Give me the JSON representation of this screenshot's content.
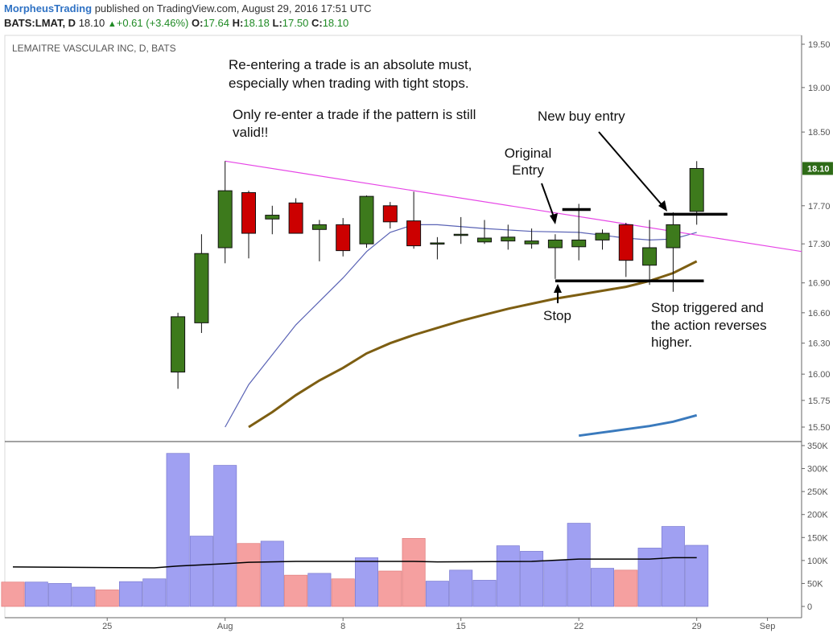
{
  "header": {
    "brand": "MorpheusTrading",
    "published": "published on TradingView.com, August 29, 2016 17:51 UTC",
    "symbol": "BATS:LMAT, D",
    "last": "18.10",
    "change": "+0.61 (+3.46%)",
    "o_label": "O:",
    "o_value": "17.64",
    "h_label": "H:",
    "h_value": "18.18",
    "l_label": "L:",
    "l_value": "17.50",
    "c_label": "C:",
    "c_value": "18.10"
  },
  "chart_data": {
    "type": "candlestick",
    "title": "LEMAITRE VASCULAR INC, D, BATS",
    "price_axis": {
      "ticks": [
        "19.50",
        "19.00",
        "18.50",
        "18.10",
        "17.70",
        "17.30",
        "16.90",
        "16.60",
        "16.30",
        "16.00",
        "15.75",
        "15.50"
      ],
      "last_price": "18.10",
      "scale": "log"
    },
    "volume_axis": {
      "ticks": [
        "350K",
        "300K",
        "250K",
        "200K",
        "150K",
        "100K",
        "50K",
        "0"
      ]
    },
    "x_ticks": [
      {
        "label": "25",
        "i": 4
      },
      {
        "label": "Aug",
        "i": 9
      },
      {
        "label": "8",
        "i": 14
      },
      {
        "label": "15",
        "i": 19
      },
      {
        "label": "22",
        "i": 24
      },
      {
        "label": "29",
        "i": 29
      },
      {
        "label": "Sep",
        "i": 32
      }
    ],
    "candles": [
      {
        "i": 7,
        "o": 16.02,
        "h": 16.6,
        "l": 15.86,
        "c": 16.56
      },
      {
        "i": 8,
        "o": 16.5,
        "h": 17.4,
        "l": 16.4,
        "c": 17.2
      },
      {
        "i": 9,
        "o": 17.26,
        "h": 18.18,
        "l": 17.1,
        "c": 17.86
      },
      {
        "i": 10,
        "o": 17.84,
        "h": 17.86,
        "l": 17.15,
        "c": 17.41
      },
      {
        "i": 11,
        "o": 17.56,
        "h": 17.7,
        "l": 17.4,
        "c": 17.6
      },
      {
        "i": 12,
        "o": 17.73,
        "h": 17.78,
        "l": 17.41,
        "c": 17.41
      },
      {
        "i": 13,
        "o": 17.45,
        "h": 17.55,
        "l": 17.12,
        "c": 17.5
      },
      {
        "i": 14,
        "o": 17.5,
        "h": 17.57,
        "l": 17.17,
        "c": 17.23
      },
      {
        "i": 15,
        "o": 17.3,
        "h": 17.81,
        "l": 17.26,
        "c": 17.8
      },
      {
        "i": 16,
        "o": 17.7,
        "h": 17.74,
        "l": 17.46,
        "c": 17.53
      },
      {
        "i": 17,
        "o": 17.54,
        "h": 17.85,
        "l": 17.25,
        "c": 17.28
      },
      {
        "i": 18,
        "o": 17.31,
        "h": 17.37,
        "l": 17.14,
        "c": 17.31
      },
      {
        "i": 19,
        "o": 17.4,
        "h": 17.58,
        "l": 17.3,
        "c": 17.4
      },
      {
        "i": 20,
        "o": 17.32,
        "h": 17.55,
        "l": 17.3,
        "c": 17.36
      },
      {
        "i": 21,
        "o": 17.33,
        "h": 17.5,
        "l": 17.24,
        "c": 17.37
      },
      {
        "i": 22,
        "o": 17.3,
        "h": 17.46,
        "l": 17.25,
        "c": 17.33
      },
      {
        "i": 23,
        "o": 17.26,
        "h": 17.4,
        "l": 16.94,
        "c": 17.34
      },
      {
        "i": 24,
        "o": 17.27,
        "h": 17.72,
        "l": 17.13,
        "c": 17.34
      },
      {
        "i": 25,
        "o": 17.34,
        "h": 17.45,
        "l": 17.24,
        "c": 17.41
      },
      {
        "i": 26,
        "o": 17.5,
        "h": 17.52,
        "l": 16.96,
        "c": 17.13
      },
      {
        "i": 27,
        "o": 17.08,
        "h": 17.55,
        "l": 16.88,
        "c": 17.26
      },
      {
        "i": 28,
        "o": 17.26,
        "h": 17.63,
        "l": 16.81,
        "c": 17.5
      },
      {
        "i": 29,
        "o": 17.64,
        "h": 18.18,
        "l": 17.5,
        "c": 18.1
      }
    ],
    "volumes": [
      {
        "i": 0,
        "v": 53000,
        "up": false
      },
      {
        "i": 1,
        "v": 53000,
        "up": true
      },
      {
        "i": 2,
        "v": 50000,
        "up": true
      },
      {
        "i": 3,
        "v": 42000,
        "up": true
      },
      {
        "i": 4,
        "v": 36000,
        "up": false
      },
      {
        "i": 5,
        "v": 54000,
        "up": true
      },
      {
        "i": 6,
        "v": 60000,
        "up": true
      },
      {
        "i": 7,
        "v": 333000,
        "up": true
      },
      {
        "i": 8,
        "v": 153000,
        "up": true
      },
      {
        "i": 9,
        "v": 307000,
        "up": true
      },
      {
        "i": 10,
        "v": 137000,
        "up": false
      },
      {
        "i": 11,
        "v": 142000,
        "up": true
      },
      {
        "i": 12,
        "v": 68000,
        "up": false
      },
      {
        "i": 13,
        "v": 72000,
        "up": true
      },
      {
        "i": 14,
        "v": 60000,
        "up": false
      },
      {
        "i": 15,
        "v": 106000,
        "up": true
      },
      {
        "i": 16,
        "v": 77000,
        "up": false
      },
      {
        "i": 17,
        "v": 148000,
        "up": false
      },
      {
        "i": 18,
        "v": 55000,
        "up": true
      },
      {
        "i": 19,
        "v": 79000,
        "up": true
      },
      {
        "i": 20,
        "v": 57000,
        "up": true
      },
      {
        "i": 21,
        "v": 132000,
        "up": true
      },
      {
        "i": 22,
        "v": 120000,
        "up": true
      },
      {
        "i": 23,
        "v": 100000,
        "up": true
      },
      {
        "i": 24,
        "v": 181000,
        "up": true
      },
      {
        "i": 25,
        "v": 83000,
        "up": true
      },
      {
        "i": 26,
        "v": 79000,
        "up": false
      },
      {
        "i": 27,
        "v": 127000,
        "up": true
      },
      {
        "i": 28,
        "v": 174000,
        "up": true
      },
      {
        "i": 29,
        "v": 133000,
        "up": true
      }
    ],
    "volume_ma": [
      {
        "i": 0,
        "v": 86000
      },
      {
        "i": 6,
        "v": 84000
      },
      {
        "i": 7,
        "v": 88000
      },
      {
        "i": 9,
        "v": 93000
      },
      {
        "i": 10,
        "v": 96000
      },
      {
        "i": 12,
        "v": 98000
      },
      {
        "i": 17,
        "v": 98000
      },
      {
        "i": 18,
        "v": 97000
      },
      {
        "i": 22,
        "v": 98000
      },
      {
        "i": 24,
        "v": 103000
      },
      {
        "i": 27,
        "v": 103000
      },
      {
        "i": 28,
        "v": 106000
      },
      {
        "i": 29,
        "v": 106000
      }
    ],
    "ma_short": [
      {
        "i": 9,
        "v": 15.5
      },
      {
        "i": 10,
        "v": 15.9
      },
      {
        "i": 12,
        "v": 16.48
      },
      {
        "i": 14,
        "v": 16.95
      },
      {
        "i": 15,
        "v": 17.22
      },
      {
        "i": 16,
        "v": 17.42
      },
      {
        "i": 17,
        "v": 17.5
      },
      {
        "i": 18,
        "v": 17.5
      },
      {
        "i": 20,
        "v": 17.46
      },
      {
        "i": 22,
        "v": 17.43
      },
      {
        "i": 24,
        "v": 17.42
      },
      {
        "i": 26,
        "v": 17.36
      },
      {
        "i": 27,
        "v": 17.34
      },
      {
        "i": 28,
        "v": 17.35
      },
      {
        "i": 29,
        "v": 17.42
      }
    ],
    "ma_mid": [
      {
        "i": 10,
        "v": 15.5
      },
      {
        "i": 11,
        "v": 15.64
      },
      {
        "i": 12,
        "v": 15.8
      },
      {
        "i": 13,
        "v": 15.94
      },
      {
        "i": 14,
        "v": 16.06
      },
      {
        "i": 15,
        "v": 16.2
      },
      {
        "i": 16,
        "v": 16.3
      },
      {
        "i": 17,
        "v": 16.38
      },
      {
        "i": 18,
        "v": 16.45
      },
      {
        "i": 19,
        "v": 16.52
      },
      {
        "i": 20,
        "v": 16.58
      },
      {
        "i": 21,
        "v": 16.64
      },
      {
        "i": 22,
        "v": 16.69
      },
      {
        "i": 23,
        "v": 16.74
      },
      {
        "i": 24,
        "v": 16.78
      },
      {
        "i": 25,
        "v": 16.82
      },
      {
        "i": 26,
        "v": 16.86
      },
      {
        "i": 27,
        "v": 16.92
      },
      {
        "i": 28,
        "v": 17.0
      },
      {
        "i": 29,
        "v": 17.12
      }
    ],
    "ma_long": [
      {
        "i": 24,
        "v": 15.42
      },
      {
        "i": 25,
        "v": 15.45
      },
      {
        "i": 26,
        "v": 15.48
      },
      {
        "i": 27,
        "v": 15.51
      },
      {
        "i": 28,
        "v": 15.55
      },
      {
        "i": 29,
        "v": 15.61
      }
    ],
    "trendline": [
      {
        "i": 9,
        "v": 18.18
      },
      {
        "i": 34,
        "v": 17.2
      }
    ],
    "level_lines": [
      {
        "name": "original-entry",
        "i0": 23.3,
        "i1": 24.5,
        "v": 17.66
      },
      {
        "name": "stop",
        "i0": 23,
        "i1": 29.3,
        "v": 16.92
      },
      {
        "name": "new-entry",
        "i0": 27.6,
        "i1": 30.3,
        "v": 17.61
      }
    ],
    "annotations": [
      {
        "name": "note-reenter-1",
        "text": "Re-entering a trade is an absolute must,"
      },
      {
        "name": "note-reenter-2",
        "text": "especially when trading with tight stops."
      },
      {
        "name": "note-valid-1",
        "text": "Only re-enter a trade if the pattern is still"
      },
      {
        "name": "note-valid-2",
        "text": "valid!!"
      },
      {
        "name": "note-new-buy",
        "text": "New buy entry"
      },
      {
        "name": "note-original-1",
        "text": "Original"
      },
      {
        "name": "note-original-2",
        "text": "Entry"
      },
      {
        "name": "note-stop",
        "text": "Stop"
      },
      {
        "name": "note-stop-triggered-1",
        "text": "Stop triggered and"
      },
      {
        "name": "note-stop-triggered-2",
        "text": "the action reverses"
      },
      {
        "name": "note-stop-triggered-3",
        "text": "higher."
      }
    ],
    "colors": {
      "up": "#3d7a1c",
      "down": "#cc0000",
      "vol_up": "#a0a0f2",
      "vol_down": "#f5a0a0",
      "ma_short": "#5a63b5",
      "ma_mid": "#7d5e12",
      "ma_long": "#3a7abd",
      "trendline": "#e645e6",
      "vol_ma": "#000000",
      "last_badge": "#2e6b17"
    }
  }
}
